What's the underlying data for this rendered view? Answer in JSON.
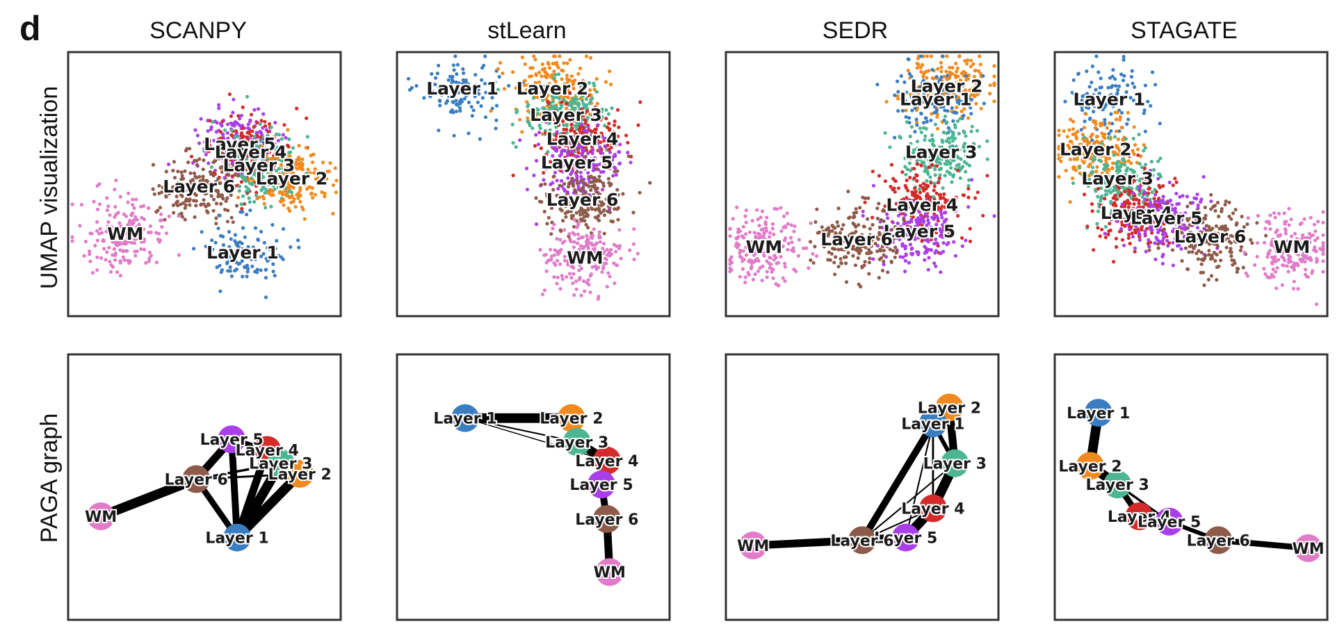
{
  "figure": {
    "panel_letter": "d",
    "row_labels": [
      "UMAP visualization",
      "PAGA graph"
    ],
    "column_titles": [
      "SCANPY",
      "stLearn",
      "SEDR",
      "STAGATE"
    ]
  },
  "colors": {
    "Layer 1": "#3a7dc0",
    "Layer 2": "#f08a1e",
    "Layer 3": "#4cb592",
    "Layer 4": "#d42a2a",
    "Layer 5": "#a93fe8",
    "Layer 6": "#8e5a4a",
    "WM": "#e07cc8"
  },
  "chart_data": [
    {
      "type": "scatter",
      "method": "SCANPY",
      "row": "UMAP visualization",
      "cluster_labels": [
        {
          "label": "Layer 5",
          "x": 0.63,
          "y": 0.65
        },
        {
          "label": "Layer 4",
          "x": 0.67,
          "y": 0.62
        },
        {
          "label": "Layer 3",
          "x": 0.7,
          "y": 0.57
        },
        {
          "label": "Layer 2",
          "x": 0.82,
          "y": 0.52
        },
        {
          "label": "Layer 6",
          "x": 0.48,
          "y": 0.49
        },
        {
          "label": "WM",
          "x": 0.21,
          "y": 0.31
        },
        {
          "label": "Layer 1",
          "x": 0.64,
          "y": 0.24
        }
      ]
    },
    {
      "type": "scatter",
      "method": "stLearn",
      "row": "UMAP visualization",
      "cluster_labels": [
        {
          "label": "Layer 1",
          "x": 0.24,
          "y": 0.86
        },
        {
          "label": "Layer 2",
          "x": 0.57,
          "y": 0.86
        },
        {
          "label": "Layer 3",
          "x": 0.62,
          "y": 0.76
        },
        {
          "label": "Layer 4",
          "x": 0.68,
          "y": 0.67
        },
        {
          "label": "Layer 5",
          "x": 0.66,
          "y": 0.58
        },
        {
          "label": "Layer 6",
          "x": 0.68,
          "y": 0.44
        },
        {
          "label": "WM",
          "x": 0.69,
          "y": 0.22
        }
      ]
    },
    {
      "type": "scatter",
      "method": "SEDR",
      "row": "UMAP visualization",
      "cluster_labels": [
        {
          "label": "Layer 2",
          "x": 0.81,
          "y": 0.87
        },
        {
          "label": "Layer 1",
          "x": 0.77,
          "y": 0.82
        },
        {
          "label": "Layer 3",
          "x": 0.79,
          "y": 0.62
        },
        {
          "label": "Layer 4",
          "x": 0.72,
          "y": 0.42
        },
        {
          "label": "Layer 5",
          "x": 0.71,
          "y": 0.32
        },
        {
          "label": "Layer 6",
          "x": 0.48,
          "y": 0.29
        },
        {
          "label": "WM",
          "x": 0.14,
          "y": 0.26
        }
      ]
    },
    {
      "type": "scatter",
      "method": "STAGATE",
      "row": "UMAP visualization",
      "cluster_labels": [
        {
          "label": "Layer 1",
          "x": 0.2,
          "y": 0.82
        },
        {
          "label": "Layer 2",
          "x": 0.15,
          "y": 0.63
        },
        {
          "label": "Layer 3",
          "x": 0.23,
          "y": 0.52
        },
        {
          "label": "Layer 4",
          "x": 0.3,
          "y": 0.39
        },
        {
          "label": "Layer 5",
          "x": 0.41,
          "y": 0.37
        },
        {
          "label": "Layer 6",
          "x": 0.57,
          "y": 0.3
        },
        {
          "label": "WM",
          "x": 0.87,
          "y": 0.26
        }
      ]
    },
    {
      "type": "network",
      "method": "SCANPY",
      "row": "PAGA graph",
      "nodes": [
        {
          "label": "Layer 5",
          "x": 0.6,
          "y": 0.68
        },
        {
          "label": "Layer 4",
          "x": 0.73,
          "y": 0.64
        },
        {
          "label": "Layer 3",
          "x": 0.78,
          "y": 0.59
        },
        {
          "label": "Layer 2",
          "x": 0.85,
          "y": 0.55
        },
        {
          "label": "Layer 6",
          "x": 0.47,
          "y": 0.53
        },
        {
          "label": "WM",
          "x": 0.12,
          "y": 0.39
        },
        {
          "label": "Layer 1",
          "x": 0.62,
          "y": 0.31
        }
      ],
      "edges": [
        {
          "from": "WM",
          "to": "Layer 6",
          "weight": 1.0
        },
        {
          "from": "Layer 6",
          "to": "Layer 5",
          "weight": 0.8
        },
        {
          "from": "Layer 6",
          "to": "Layer 1",
          "weight": 0.6
        },
        {
          "from": "Layer 1",
          "to": "Layer 5",
          "weight": 0.7
        },
        {
          "from": "Layer 1",
          "to": "Layer 4",
          "weight": 0.8
        },
        {
          "from": "Layer 1",
          "to": "Layer 3",
          "weight": 1.0
        },
        {
          "from": "Layer 1",
          "to": "Layer 2",
          "weight": 1.0
        },
        {
          "from": "Layer 5",
          "to": "Layer 4",
          "weight": 0.5
        },
        {
          "from": "Layer 6",
          "to": "Layer 3",
          "weight": 0.2
        },
        {
          "from": "Layer 6",
          "to": "Layer 2",
          "weight": 0.15
        }
      ]
    },
    {
      "type": "network",
      "method": "stLearn",
      "row": "PAGA graph",
      "nodes": [
        {
          "label": "Layer 1",
          "x": 0.25,
          "y": 0.76
        },
        {
          "label": "Layer 2",
          "x": 0.64,
          "y": 0.76
        },
        {
          "label": "Layer 3",
          "x": 0.66,
          "y": 0.67
        },
        {
          "label": "Layer 4",
          "x": 0.77,
          "y": 0.6
        },
        {
          "label": "Layer 5",
          "x": 0.75,
          "y": 0.51
        },
        {
          "label": "Layer 6",
          "x": 0.77,
          "y": 0.38
        },
        {
          "label": "WM",
          "x": 0.78,
          "y": 0.18
        }
      ],
      "edges": [
        {
          "from": "Layer 1",
          "to": "Layer 2",
          "weight": 1.0
        },
        {
          "from": "Layer 1",
          "to": "Layer 3",
          "weight": 0.1
        },
        {
          "from": "Layer 1",
          "to": "Layer 4",
          "weight": 0.05
        },
        {
          "from": "Layer 2",
          "to": "Layer 3",
          "weight": 0.5
        },
        {
          "from": "Layer 3",
          "to": "Layer 4",
          "weight": 0.9
        },
        {
          "from": "Layer 4",
          "to": "Layer 5",
          "weight": 0.6
        },
        {
          "from": "Layer 5",
          "to": "Layer 6",
          "weight": 0.7
        },
        {
          "from": "Layer 6",
          "to": "WM",
          "weight": 0.8
        }
      ]
    },
    {
      "type": "network",
      "method": "SEDR",
      "row": "PAGA graph",
      "nodes": [
        {
          "label": "Layer 2",
          "x": 0.82,
          "y": 0.8
        },
        {
          "label": "Layer 1",
          "x": 0.76,
          "y": 0.74
        },
        {
          "label": "Layer 3",
          "x": 0.84,
          "y": 0.59
        },
        {
          "label": "Layer 4",
          "x": 0.76,
          "y": 0.42
        },
        {
          "label": "Layer 5",
          "x": 0.66,
          "y": 0.31
        },
        {
          "label": "Layer 6",
          "x": 0.5,
          "y": 0.3
        },
        {
          "label": "WM",
          "x": 0.1,
          "y": 0.28
        }
      ],
      "edges": [
        {
          "from": "WM",
          "to": "Layer 6",
          "weight": 0.8
        },
        {
          "from": "Layer 6",
          "to": "Layer 5",
          "weight": 0.9
        },
        {
          "from": "Layer 6",
          "to": "Layer 1",
          "weight": 0.7
        },
        {
          "from": "Layer 5",
          "to": "Layer 4",
          "weight": 1.0
        },
        {
          "from": "Layer 4",
          "to": "Layer 3",
          "weight": 1.0
        },
        {
          "from": "Layer 3",
          "to": "Layer 2",
          "weight": 0.8
        },
        {
          "from": "Layer 3",
          "to": "Layer 1",
          "weight": 0.4
        },
        {
          "from": "Layer 1",
          "to": "Layer 4",
          "weight": 0.15
        },
        {
          "from": "Layer 1",
          "to": "Layer 5",
          "weight": 0.1
        },
        {
          "from": "Layer 6",
          "to": "Layer 3",
          "weight": 0.1
        },
        {
          "from": "Layer 6",
          "to": "Layer 4",
          "weight": 0.1
        }
      ]
    },
    {
      "type": "network",
      "method": "STAGATE",
      "row": "PAGA graph",
      "nodes": [
        {
          "label": "Layer 1",
          "x": 0.16,
          "y": 0.78
        },
        {
          "label": "Layer 2",
          "x": 0.13,
          "y": 0.58
        },
        {
          "label": "Layer 3",
          "x": 0.23,
          "y": 0.51
        },
        {
          "label": "Layer 4",
          "x": 0.31,
          "y": 0.39
        },
        {
          "label": "Layer 5",
          "x": 0.42,
          "y": 0.37
        },
        {
          "label": "Layer 6",
          "x": 0.6,
          "y": 0.3
        },
        {
          "label": "WM",
          "x": 0.93,
          "y": 0.27
        }
      ],
      "edges": [
        {
          "from": "Layer 1",
          "to": "Layer 2",
          "weight": 1.0
        },
        {
          "from": "Layer 2",
          "to": "Layer 3",
          "weight": 1.0
        },
        {
          "from": "Layer 3",
          "to": "Layer 4",
          "weight": 0.6
        },
        {
          "from": "Layer 3",
          "to": "Layer 5",
          "weight": 0.2
        },
        {
          "from": "Layer 4",
          "to": "Layer 5",
          "weight": 0.5
        },
        {
          "from": "Layer 5",
          "to": "Layer 6",
          "weight": 0.4
        },
        {
          "from": "Layer 6",
          "to": "WM",
          "weight": 0.6
        }
      ]
    }
  ]
}
